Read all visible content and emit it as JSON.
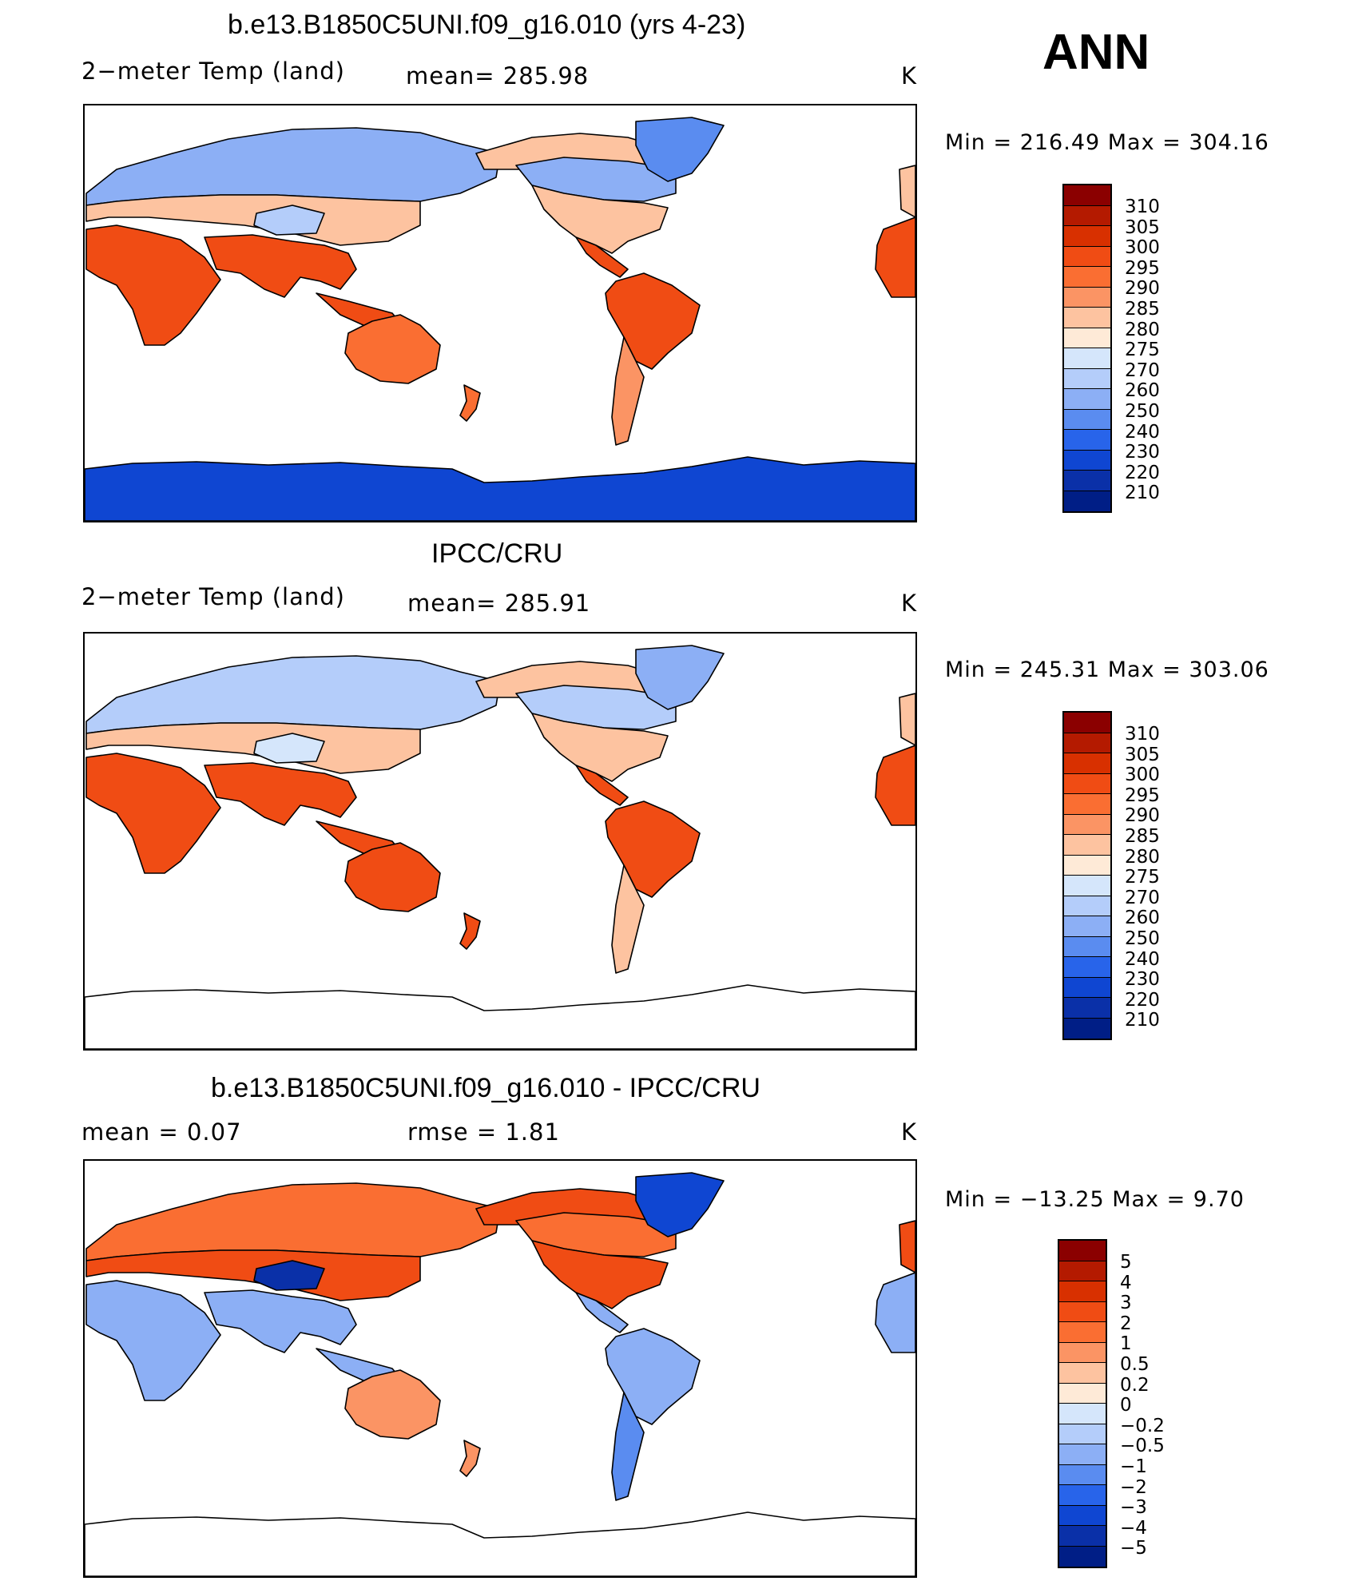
{
  "season": "ANN",
  "units": "K",
  "palette_temp": [
    "#8b0000",
    "#b41a00",
    "#d83000",
    "#f04c14",
    "#fa6e32",
    "#fb9464",
    "#fdc3a0",
    "#feead7",
    "#d5e6fb",
    "#b4cdfa",
    "#8caff5",
    "#5a8cf0",
    "#2864ea",
    "#0f46d2",
    "#0a30a8",
    "#001e86"
  ],
  "palette_diff": [
    "#8b0000",
    "#b41a00",
    "#d83000",
    "#f04c14",
    "#fa6e32",
    "#fb9464",
    "#fdc3a0",
    "#feead7",
    "#d5e6fb",
    "#b4cdfa",
    "#8caff5",
    "#5a8cf0",
    "#2864ea",
    "#0f46d2",
    "#0a30a8",
    "#001e86"
  ],
  "panels": [
    {
      "title": "b.e13.B1850C5UNI.f09_g16.010 (yrs 4-23)",
      "left_label": "2−meter Temp (land)",
      "mid_label": "mean=  285.98",
      "units": "K",
      "min_max": "Min  =  216.49  Max  =  304.16",
      "colorbar_labels": [
        "310",
        "305",
        "300",
        "295",
        "290",
        "285",
        "280",
        "275",
        "270",
        "260",
        "250",
        "240",
        "230",
        "220",
        "210"
      ],
      "land_colors": {
        "north": "#8caff5",
        "temperate": "#fdc3a0",
        "tropics": "#f04c14",
        "australia": "#fa6e32",
        "antarctica": "#0f46d2",
        "greenland": "#5a8cf0",
        "tibet": "#b4cdfa",
        "south_america_south": "#fb9464"
      }
    },
    {
      "title": "IPCC/CRU",
      "left_label": "2−meter Temp (land)",
      "mid_label": "mean=  285.91",
      "units": "K",
      "min_max": "Min  =  245.31  Max  =  303.06",
      "colorbar_labels": [
        "310",
        "305",
        "300",
        "295",
        "290",
        "285",
        "280",
        "275",
        "270",
        "260",
        "250",
        "240",
        "230",
        "220",
        "210"
      ],
      "land_colors": {
        "north": "#b4cdfa",
        "temperate": "#fdc3a0",
        "tropics": "#f04c14",
        "australia": "#f04c14",
        "antarctica": "#ffffff",
        "greenland": "#8caff5",
        "tibet": "#d5e6fb",
        "south_america_south": "#fdc3a0"
      }
    },
    {
      "title": "b.e13.B1850C5UNI.f09_g16.010 - IPCC/CRU",
      "left_label": "mean  =      0.07",
      "mid_label": "rmse  =      1.81",
      "units": "K",
      "min_max": "Min  =  −13.25  Max  =      9.70",
      "colorbar_labels": [
        "5",
        "4",
        "3",
        "2",
        "1",
        "0.5",
        "0.2",
        "0",
        "−0.2",
        "−0.5",
        "−1",
        "−2",
        "−3",
        "−4",
        "−5"
      ],
      "land_colors": {
        "north": "#fa6e32",
        "temperate": "#f04c14",
        "tropics": "#8caff5",
        "australia": "#fb9464",
        "antarctica": "#ffffff",
        "greenland": "#0f46d2",
        "tibet": "#0a30a8",
        "south_america_south": "#5a8cf0"
      }
    }
  ]
}
